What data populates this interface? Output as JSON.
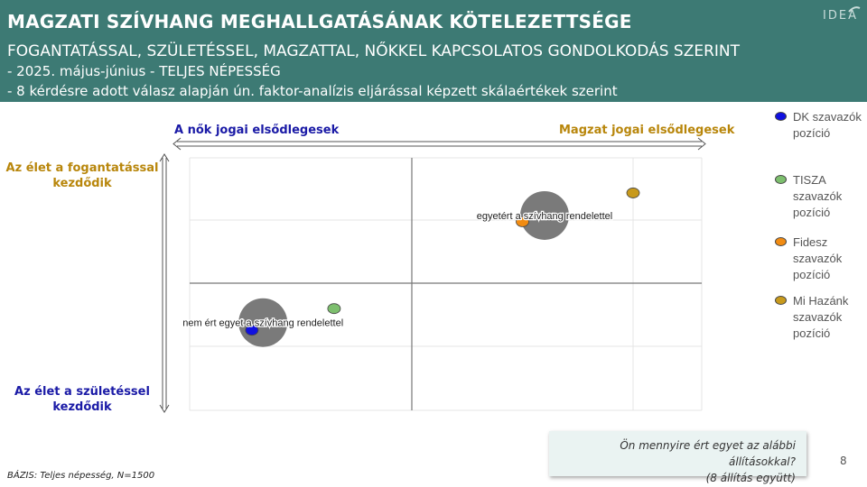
{
  "header": {
    "title": "MAGZATI SZÍVHANG MEGHALLGATÁSÁNAK KÖTELEZETTSÉGE",
    "subtitle": "FOGANTATÁSSAL, SZÜLETÉSSEL, MAGZATTAL, NŐKKEL  KAPCSOLATOS GONDOLKODÁS SZERINT",
    "line1": "- 2025. május-június - TELJES NÉPESSÉG",
    "line2": "- 8 kérdésre adott válasz alapján ún. faktor-analízis  eljárással képzett skálaértékek szerint",
    "logo": "IDEA"
  },
  "colors": {
    "header_bg": "#3d7a74",
    "blue_label": "#1a1aa6",
    "gold_label": "#b8860b",
    "dk": "#1010e0",
    "tisza": "#7dbf6e",
    "fidesz": "#f28c12",
    "mihazank": "#c89a1c",
    "bubble": "#7a7a7a"
  },
  "axes": {
    "x_left": "A nők jogai elsődlegesek",
    "x_right": "Magzat jogai elsődlegesek",
    "y_top": "Az élet a fogantatással kezdődik",
    "y_bottom": "Az élet a születéssel kezdődik"
  },
  "legend": [
    {
      "name": "DK szavazók pozíció",
      "color": "#1010e0"
    },
    {
      "name": "TISZA szavazók pozíció",
      "color": "#7dbf6e"
    },
    {
      "name": "Fidesz szavazók pozíció",
      "color": "#f28c12"
    },
    {
      "name": "Mi Hazánk szavazók pozíció",
      "color": "#c89a1c"
    }
  ],
  "chart_data": {
    "type": "scatter",
    "xlim": [
      -1,
      1
    ],
    "ylim": [
      -1,
      1
    ],
    "grid": true,
    "legend_position": "right",
    "points": [
      {
        "name": "DK szavazók pozíció",
        "x": -0.72,
        "y": -0.37,
        "color": "#1010e0"
      },
      {
        "name": "TISZA szavazók pozíció",
        "x": -0.35,
        "y": -0.2,
        "color": "#7dbf6e"
      },
      {
        "name": "Fidesz szavazók pozíció",
        "x": 0.5,
        "y": 0.49,
        "color": "#f28c12"
      },
      {
        "name": "Mi Hazánk szavazók pozíció",
        "x": 1.0,
        "y": 0.72,
        "color": "#c89a1c"
      }
    ],
    "bubbles": [
      {
        "label": "egyetért a szívhang rendelettel",
        "x": 0.6,
        "y": 0.54,
        "size": 1.0
      },
      {
        "label": "nem ért egyet a szívhang rendelettel",
        "x": -0.67,
        "y": -0.31,
        "size": 1.0
      }
    ]
  },
  "question": {
    "line1": "Ön mennyire ért egyet az alábbi állításokkal?",
    "line2": "(8 állítás együtt)"
  },
  "page_number": "8",
  "basis": "BÁZIS: Teljes népesség, N=1500"
}
